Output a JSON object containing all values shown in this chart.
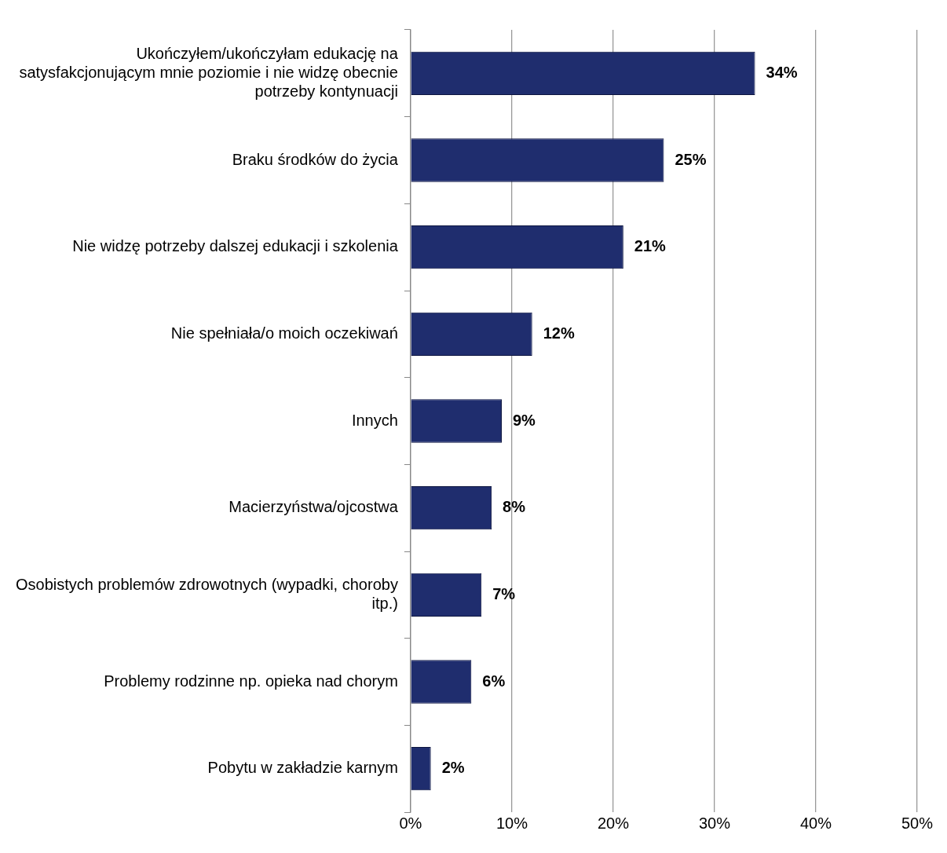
{
  "chart_data": {
    "type": "bar",
    "orientation": "horizontal",
    "categories": [
      "Ukończyłem/ukończyłam edukację na satysfakcjonującym mnie poziomie i nie widzę obecnie potrzeby kontynuacji",
      "Braku środków do życia",
      "Nie widzę potrzeby dalszej edukacji i szkolenia",
      "Nie spełniała/o moich oczekiwań",
      "Innych",
      "Macierzyństwa/ojcostwa",
      "Osobistych problemów zdrowotnych (wypadki, choroby itp.)",
      "Problemy rodzinne np. opieka nad chorym",
      "Pobytu w zakładzie karnym"
    ],
    "values": [
      34,
      25,
      21,
      12,
      9,
      8,
      7,
      6,
      2
    ],
    "value_labels": [
      "34%",
      "25%",
      "21%",
      "12%",
      "9%",
      "8%",
      "7%",
      "6%",
      "2%"
    ],
    "color": "#1f2d6e",
    "xlim": [
      0,
      50
    ],
    "xticks": [
      {
        "value": 0,
        "label": "0%"
      },
      {
        "value": 10,
        "label": "10%"
      },
      {
        "value": 20,
        "label": "20%"
      },
      {
        "value": 30,
        "label": "30%"
      },
      {
        "value": 40,
        "label": "40%"
      },
      {
        "value": 50,
        "label": "50%"
      }
    ],
    "grid": "x",
    "legend": false
  }
}
